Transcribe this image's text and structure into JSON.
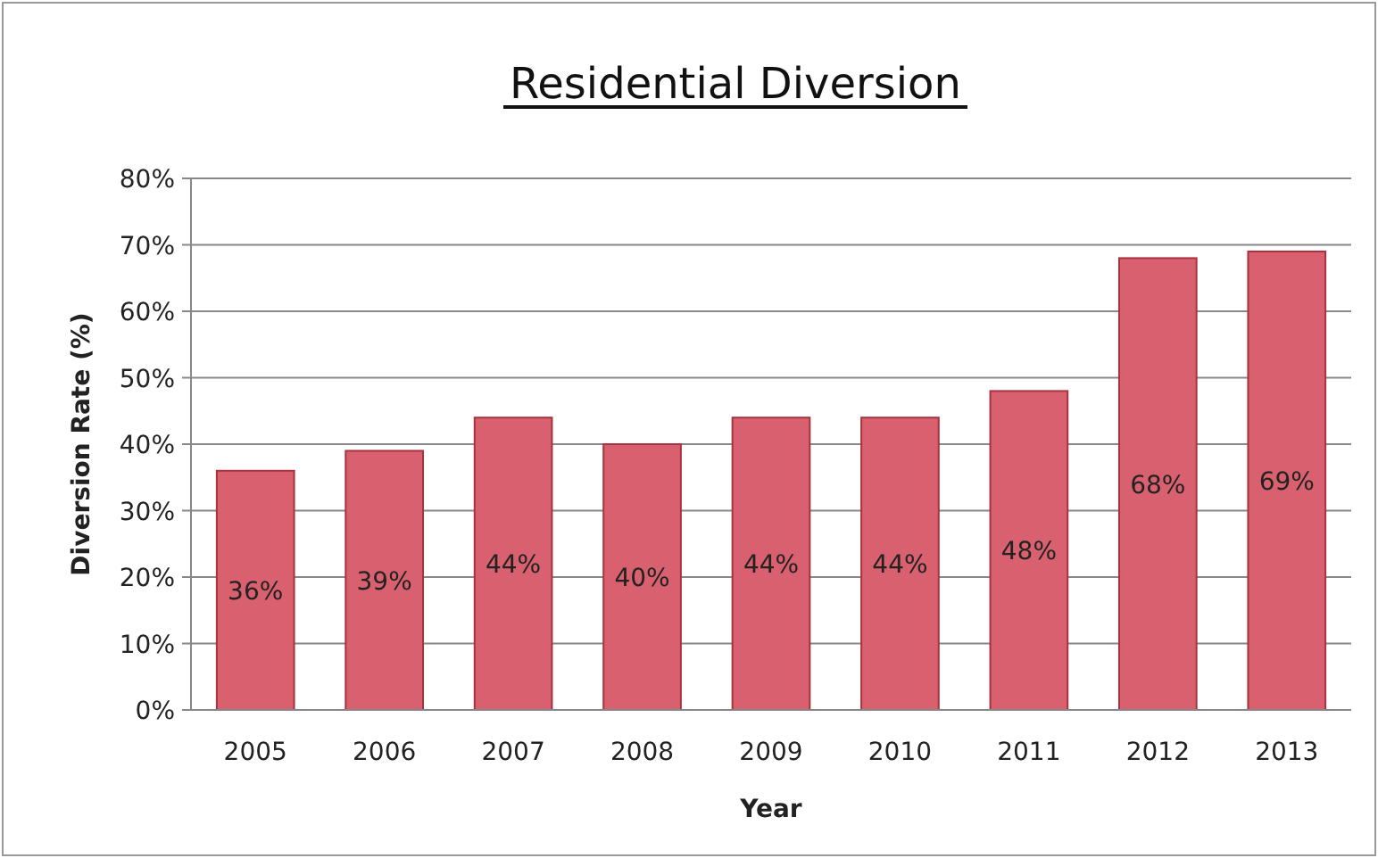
{
  "chart_data": {
    "type": "bar",
    "title": "Residential Diversion",
    "xlabel": "Year",
    "ylabel": "Diversion Rate (%)",
    "categories": [
      "2005",
      "2006",
      "2007",
      "2008",
      "2009",
      "2010",
      "2011",
      "2012",
      "2013"
    ],
    "values": [
      36,
      39,
      44,
      40,
      44,
      44,
      48,
      68,
      69
    ],
    "value_labels": [
      "36%",
      "39%",
      "44%",
      "40%",
      "44%",
      "44%",
      "48%",
      "68%",
      "69%"
    ],
    "color": "#d9606e",
    "ylim": [
      0,
      80
    ],
    "yticks": [
      {
        "value": 0,
        "label": "0%"
      },
      {
        "value": 10,
        "label": "10%"
      },
      {
        "value": 20,
        "label": "20%"
      },
      {
        "value": 30,
        "label": "30%"
      },
      {
        "value": 40,
        "label": "40%"
      },
      {
        "value": 50,
        "label": "50%"
      },
      {
        "value": 60,
        "label": "60%"
      },
      {
        "value": 70,
        "label": "70%"
      },
      {
        "value": 80,
        "label": "80%"
      }
    ],
    "grid": "y"
  }
}
